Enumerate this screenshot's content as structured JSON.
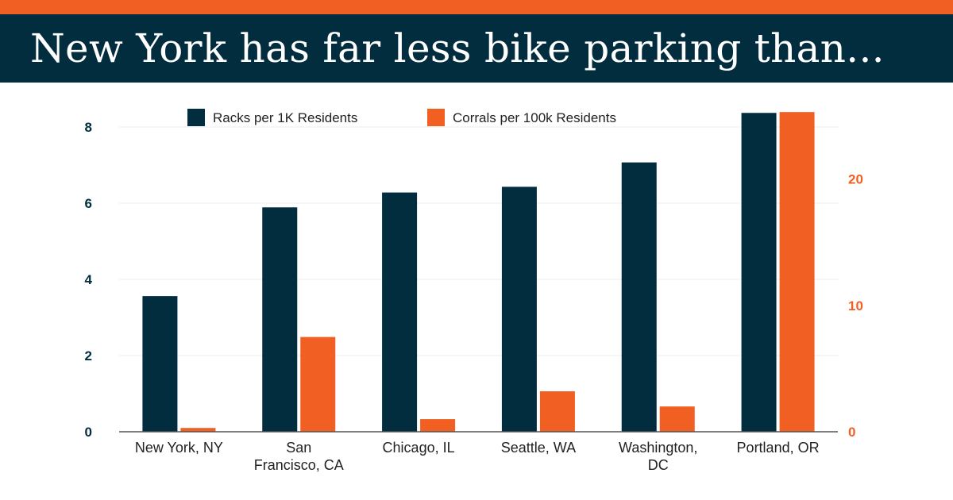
{
  "header": {
    "title": "New York has far less bike parking than..."
  },
  "colors": {
    "navy": "#012d3e",
    "orange": "#f15f22",
    "grid": "#eeeeee",
    "axis": "#555555",
    "text": "#222222"
  },
  "chart_data": {
    "type": "bar",
    "categories": [
      [
        "New York, NY"
      ],
      [
        "San",
        "Francisco, CA"
      ],
      [
        "Chicago, IL"
      ],
      [
        "Seattle, WA"
      ],
      [
        "Washington,",
        "DC"
      ],
      [
        "Portland, OR"
      ]
    ],
    "series": [
      {
        "name": "Racks per 1K Residents",
        "axis": "left",
        "color": "#012d3e",
        "values": [
          3.56,
          5.89,
          6.28,
          6.43,
          7.07,
          8.37
        ]
      },
      {
        "name": "Corrals per 100k Residents",
        "axis": "right",
        "color": "#f15f22",
        "values": [
          0.3,
          7.5,
          1.0,
          3.2,
          2.0,
          25.3
        ]
      }
    ],
    "y_left": {
      "min": 0,
      "max": 8.5,
      "ticks": [
        0,
        2,
        4,
        6,
        8
      ]
    },
    "y_right": {
      "min": 0,
      "max": 25.5,
      "ticks": [
        0,
        10,
        20
      ]
    },
    "grid": true,
    "legend": "top-center"
  }
}
